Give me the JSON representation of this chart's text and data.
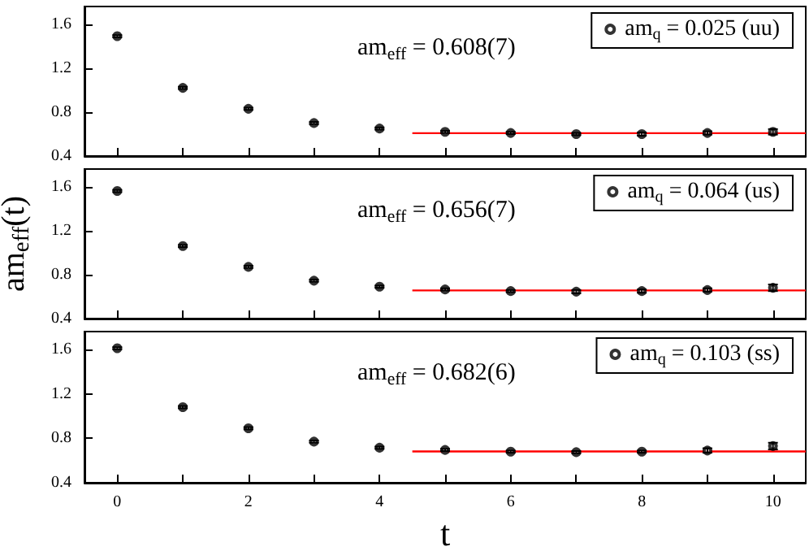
{
  "chart_data": [
    {
      "type": "scatter",
      "tick_labels": "y",
      "legend": "top right",
      "grid": false,
      "xlim": [
        -0.5,
        10.5
      ],
      "xticks": [
        0,
        {
          "value": 1,
          "label": null
        },
        2,
        {
          "value": 3,
          "label": null
        },
        4,
        {
          "value": 5,
          "label": null
        },
        6,
        {
          "value": 7,
          "label": null
        },
        8,
        {
          "value": 9,
          "label": null
        },
        10
      ],
      "ylim": [
        0.4,
        1.76
      ],
      "yticks": [
        0.4,
        0.8,
        1.2,
        1.6
      ],
      "annotations": [
        "am$_{eff}$ = 0.608(7)"
      ],
      "series": [
        {
          "name": "am$_{q}$ = 0.025 (uu)",
          "marker": "circle",
          "color": "#000000",
          "x": [
            0,
            1,
            2,
            3,
            4,
            5,
            6,
            7,
            8,
            9,
            10
          ],
          "values": [
            1.49,
            1.02,
            0.83,
            0.7,
            0.65,
            0.62,
            0.61,
            0.6,
            0.6,
            0.61,
            0.62
          ],
          "errors": [
            0.01,
            0.01,
            0.01,
            0.01,
            0.01,
            0.01,
            0.01,
            0.01,
            0.015,
            0.015,
            0.025
          ]
        },
        {
          "type": "line",
          "color": "#ff0000",
          "x": [
            4.5,
            10.5
          ],
          "values": [
            0.608,
            0.608
          ]
        }
      ]
    },
    {
      "type": "scatter",
      "tick_labels": "y",
      "legend": "top right",
      "grid": false,
      "ylabel": "am$_{eff}$(t)",
      "xlim": [
        -0.5,
        10.5
      ],
      "xticks": [
        0,
        {
          "value": 1,
          "label": null
        },
        2,
        {
          "value": 3,
          "label": null
        },
        4,
        {
          "value": 5,
          "label": null
        },
        6,
        {
          "value": 7,
          "label": null
        },
        8,
        {
          "value": 9,
          "label": null
        },
        10
      ],
      "ylim": [
        0.4,
        1.76
      ],
      "yticks": [
        0.4,
        0.8,
        1.2,
        1.6
      ],
      "annotations": [
        "am$_{eff}$ = 0.656(7)"
      ],
      "series": [
        {
          "name": "am$_{q}$ = 0.064 (us)",
          "marker": "circle",
          "color": "#000000",
          "x": [
            0,
            1,
            2,
            3,
            4,
            5,
            6,
            7,
            8,
            9,
            10
          ],
          "values": [
            1.56,
            1.06,
            0.87,
            0.745,
            0.69,
            0.665,
            0.65,
            0.645,
            0.65,
            0.66,
            0.68
          ],
          "errors": [
            0.01,
            0.01,
            0.01,
            0.01,
            0.01,
            0.01,
            0.01,
            0.015,
            0.015,
            0.015,
            0.03
          ]
        },
        {
          "type": "line",
          "color": "#ff0000",
          "x": [
            4.5,
            10.5
          ],
          "values": [
            0.656,
            0.656
          ]
        }
      ]
    },
    {
      "type": "scatter",
      "legend": "top right",
      "grid": false,
      "xlabel": "t",
      "xlim": [
        -0.5,
        10.5
      ],
      "xticks": [
        0,
        {
          "value": 1,
          "label": null
        },
        2,
        {
          "value": 3,
          "label": null
        },
        4,
        {
          "value": 5,
          "label": null
        },
        6,
        {
          "value": 7,
          "label": null
        },
        8,
        {
          "value": 9,
          "label": null
        },
        10
      ],
      "ylim": [
        0.4,
        1.76
      ],
      "yticks": [
        0.4,
        0.8,
        1.2,
        1.6
      ],
      "annotations": [
        "am$_{eff}$ = 0.682(6)"
      ],
      "series": [
        {
          "name": "am$_{q}$ = 0.103 (ss)",
          "marker": "circle",
          "color": "#000000",
          "x": [
            0,
            1,
            2,
            3,
            4,
            5,
            6,
            7,
            8,
            9,
            10
          ],
          "values": [
            1.61,
            1.08,
            0.89,
            0.77,
            0.715,
            0.695,
            0.68,
            0.675,
            0.68,
            0.69,
            0.73
          ],
          "errors": [
            0.01,
            0.01,
            0.01,
            0.01,
            0.01,
            0.01,
            0.01,
            0.01,
            0.01,
            0.02,
            0.03
          ]
        },
        {
          "type": "line",
          "color": "#ff0000",
          "x": [
            4.5,
            10.5
          ],
          "values": [
            0.682,
            0.682
          ]
        }
      ]
    }
  ]
}
